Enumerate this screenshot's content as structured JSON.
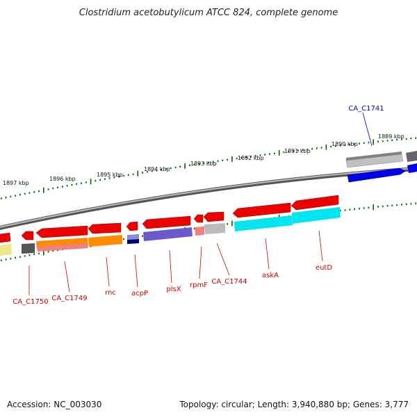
{
  "title": "Clostridium acetobutylicum ATCC 824, complete genome",
  "footer": {
    "accession": "Accession: NC_003030",
    "topology": "Topology: circular; Length: 3,940,880 bp; Genes: 3,777"
  },
  "kbp_labels": [
    "1897 kbp",
    "1896 kbp",
    "1895 kbp",
    "1894 kbp",
    "1893 kbp",
    "1892 kbp",
    "1891 kbp",
    "1890 kbp",
    "1889 kbp"
  ],
  "gene_labels": [
    {
      "text": "CA_C1741",
      "color": "#0000cc",
      "position": "above"
    },
    {
      "text": "CA_C1750",
      "color": "#cc0000",
      "position": "below"
    },
    {
      "text": "CA_C1749",
      "color": "#cc0000",
      "position": "below"
    },
    {
      "text": "rnc",
      "color": "#cc0000",
      "position": "below"
    },
    {
      "text": "acpP",
      "color": "#cc0000",
      "position": "below"
    },
    {
      "text": "plsX",
      "color": "#cc0000",
      "position": "below"
    },
    {
      "text": "rpmF",
      "color": "#cc0000",
      "position": "below"
    },
    {
      "text": "CA_C1744",
      "color": "#cc0000",
      "position": "below"
    },
    {
      "text": "askA",
      "color": "#cc0000",
      "position": "below"
    },
    {
      "text": "eutD",
      "color": "#cc0000",
      "position": "below"
    }
  ],
  "colors": {
    "gene_red": "#ee0000",
    "gene_blue": "#0000ee",
    "cog_orange": "#ff8c00",
    "cog_cyan": "#00e5ee",
    "cog_purple": "#6a5acd",
    "cog_navy": "#000080",
    "cog_grey": "#aaaaaa",
    "tick_green": "#006400"
  }
}
